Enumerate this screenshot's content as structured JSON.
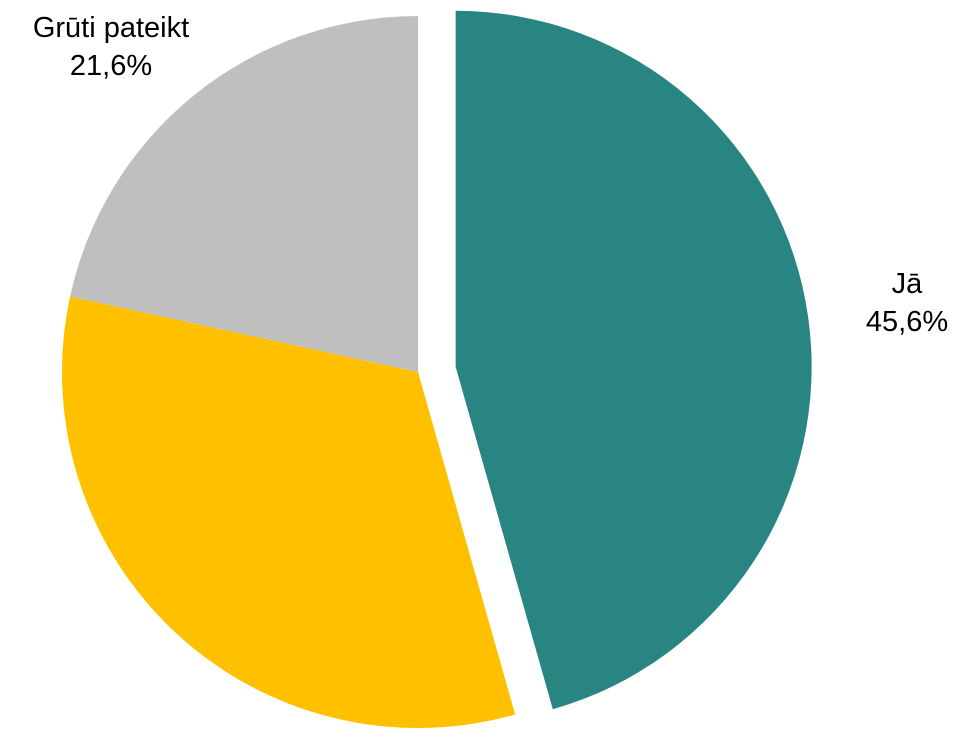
{
  "chart_data": {
    "type": "pie",
    "title": "",
    "slices": [
      {
        "label": "Jā",
        "value": 45.6,
        "value_label": "45,6%",
        "color": "#288582",
        "exploded": true
      },
      {
        "label": "",
        "value": 32.8,
        "value_label": "",
        "color": "#ffc000",
        "exploded": false
      },
      {
        "label": "Grūti pateikt",
        "value": 21.6,
        "value_label": "21,6%",
        "color": "#bfbfbf",
        "exploded": false
      }
    ],
    "start_angle": "12 o'clock",
    "direction": "clockwise",
    "legend": "none"
  }
}
